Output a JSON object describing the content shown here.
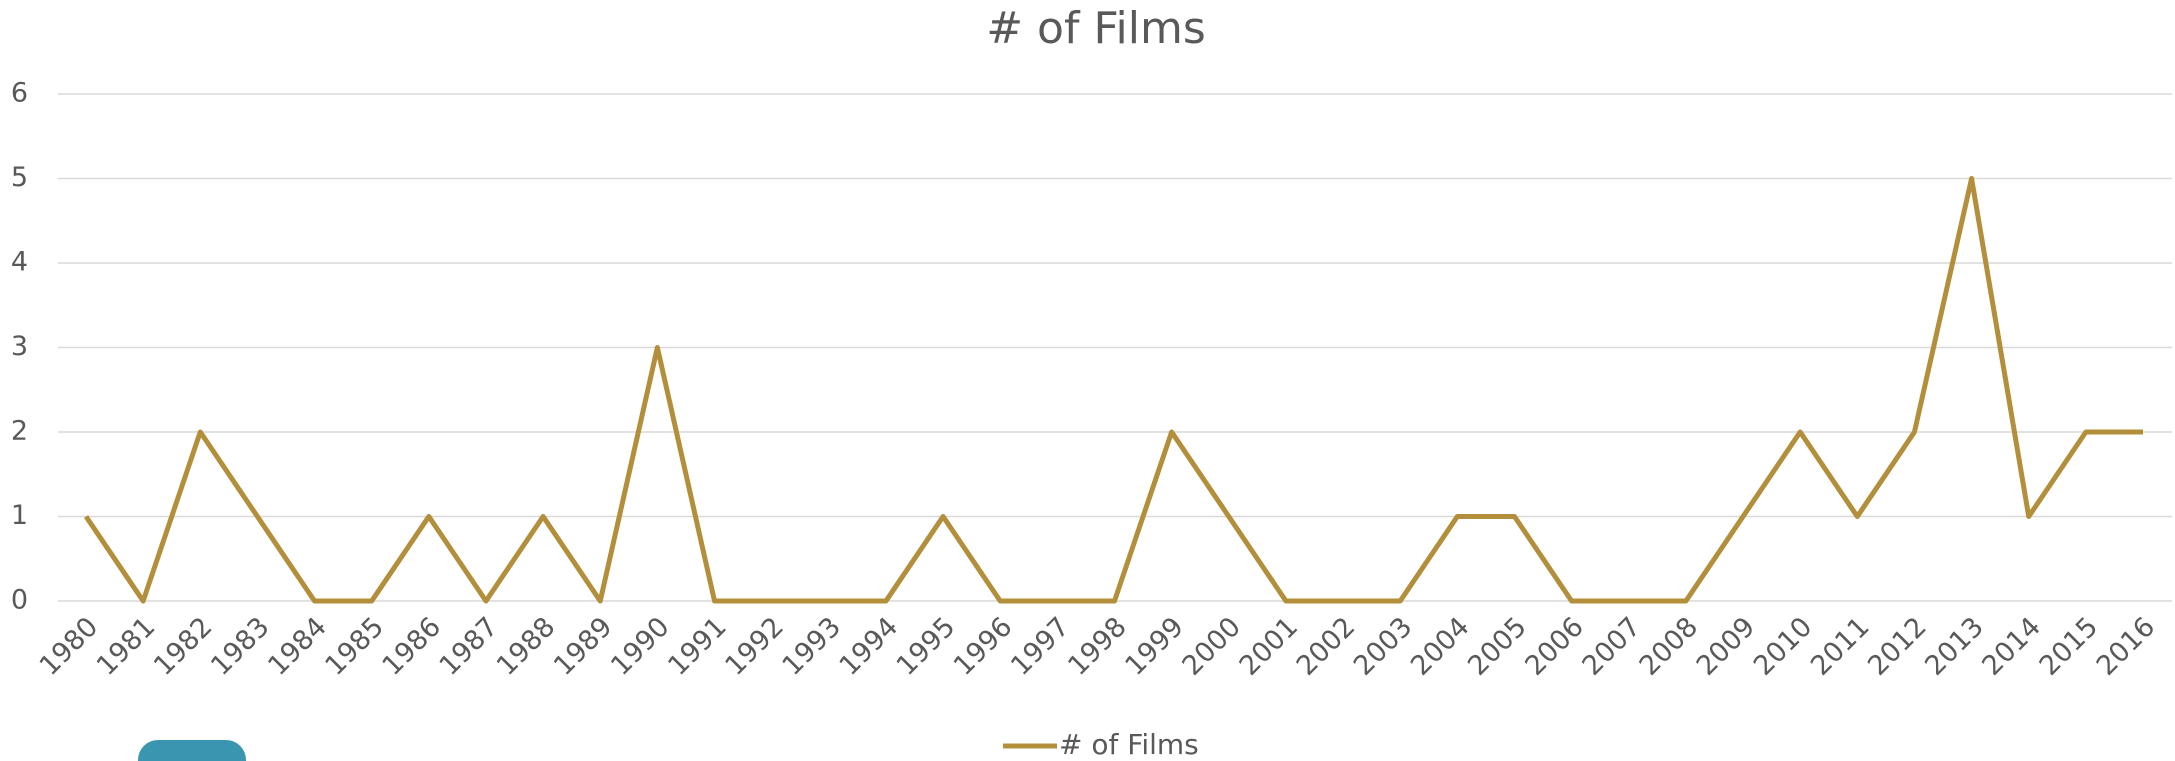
{
  "chart_data": {
    "type": "line",
    "title": "# of Films",
    "categories": [
      "1980",
      "1981",
      "1982",
      "1983",
      "1984",
      "1985",
      "1986",
      "1987",
      "1988",
      "1989",
      "1990",
      "1991",
      "1992",
      "1993",
      "1994",
      "1995",
      "1996",
      "1997",
      "1998",
      "1999",
      "2000",
      "2001",
      "2002",
      "2003",
      "2004",
      "2005",
      "2006",
      "2007",
      "2008",
      "2009",
      "2010",
      "2011",
      "2012",
      "2013",
      "2014",
      "2015",
      "2016"
    ],
    "series": [
      {
        "name": "# of Films",
        "color": "#b38f3c",
        "values": [
          1,
          0,
          2,
          1,
          0,
          0,
          1,
          0,
          1,
          0,
          3,
          0,
          0,
          0,
          0,
          1,
          0,
          0,
          0,
          2,
          1,
          0,
          0,
          0,
          1,
          1,
          0,
          0,
          0,
          1,
          2,
          1,
          2,
          5,
          1,
          2,
          2
        ]
      }
    ],
    "ylim": [
      0,
      6
    ],
    "yticks": [
      0,
      1,
      2,
      3,
      4,
      5,
      6
    ],
    "grid": true,
    "legend": "bottom"
  }
}
